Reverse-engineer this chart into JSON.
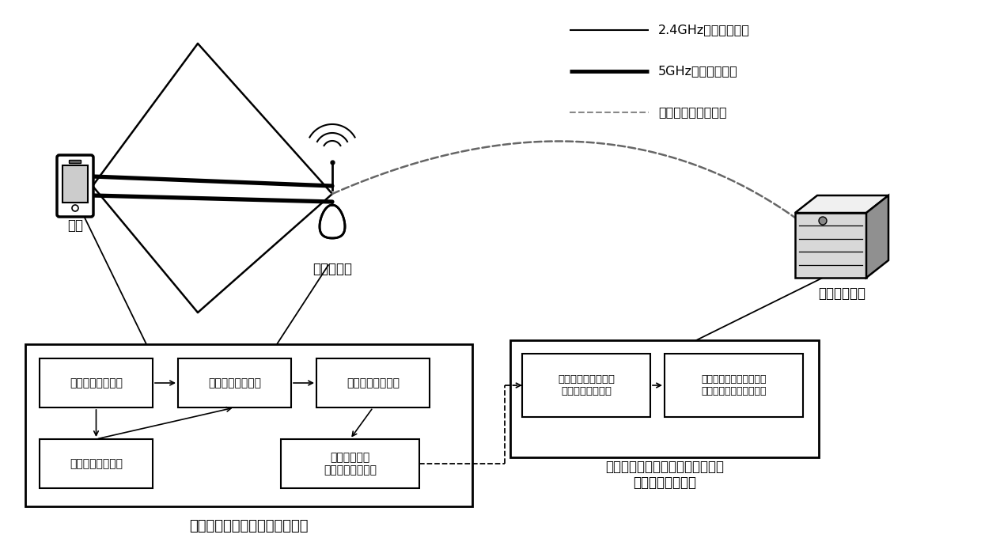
{
  "bg_color": "#ffffff",
  "legend_items": [
    {
      "label": "2.4GHz信号传播路径",
      "linestyle": "-",
      "linewidth": 1.5,
      "color": "#000000"
    },
    {
      "label": "5GHz信号传播路径",
      "linestyle": "-",
      "linewidth": 3.5,
      "color": "#000000"
    },
    {
      "label": "回传至联合估计单元",
      "linestyle": "--",
      "linewidth": 1.5,
      "color": "#888888"
    }
  ],
  "user_label": "用户",
  "ap_label": "无线接入点",
  "unit2_label": "联合估计单元",
  "bottom_left_title": "用户到达角和传播时间估计单元",
  "bottom_right_title": "多接入点用户到达角和传播时间的\n联合信息处理模块",
  "box1_label": "用户信号接收模块",
  "box2_label": "用户时偏补偿模块",
  "box3_label": "用户信号重构模块",
  "box4_label": "用户时偏估计模块",
  "box5_label": "信号到达角和\n传播时间估算模块",
  "rbox1_label": "多频点信号到达角和\n传播时间接收模块",
  "rbox2_label": "多频点信号到达角和传播\n时间联合估计和决策模块"
}
